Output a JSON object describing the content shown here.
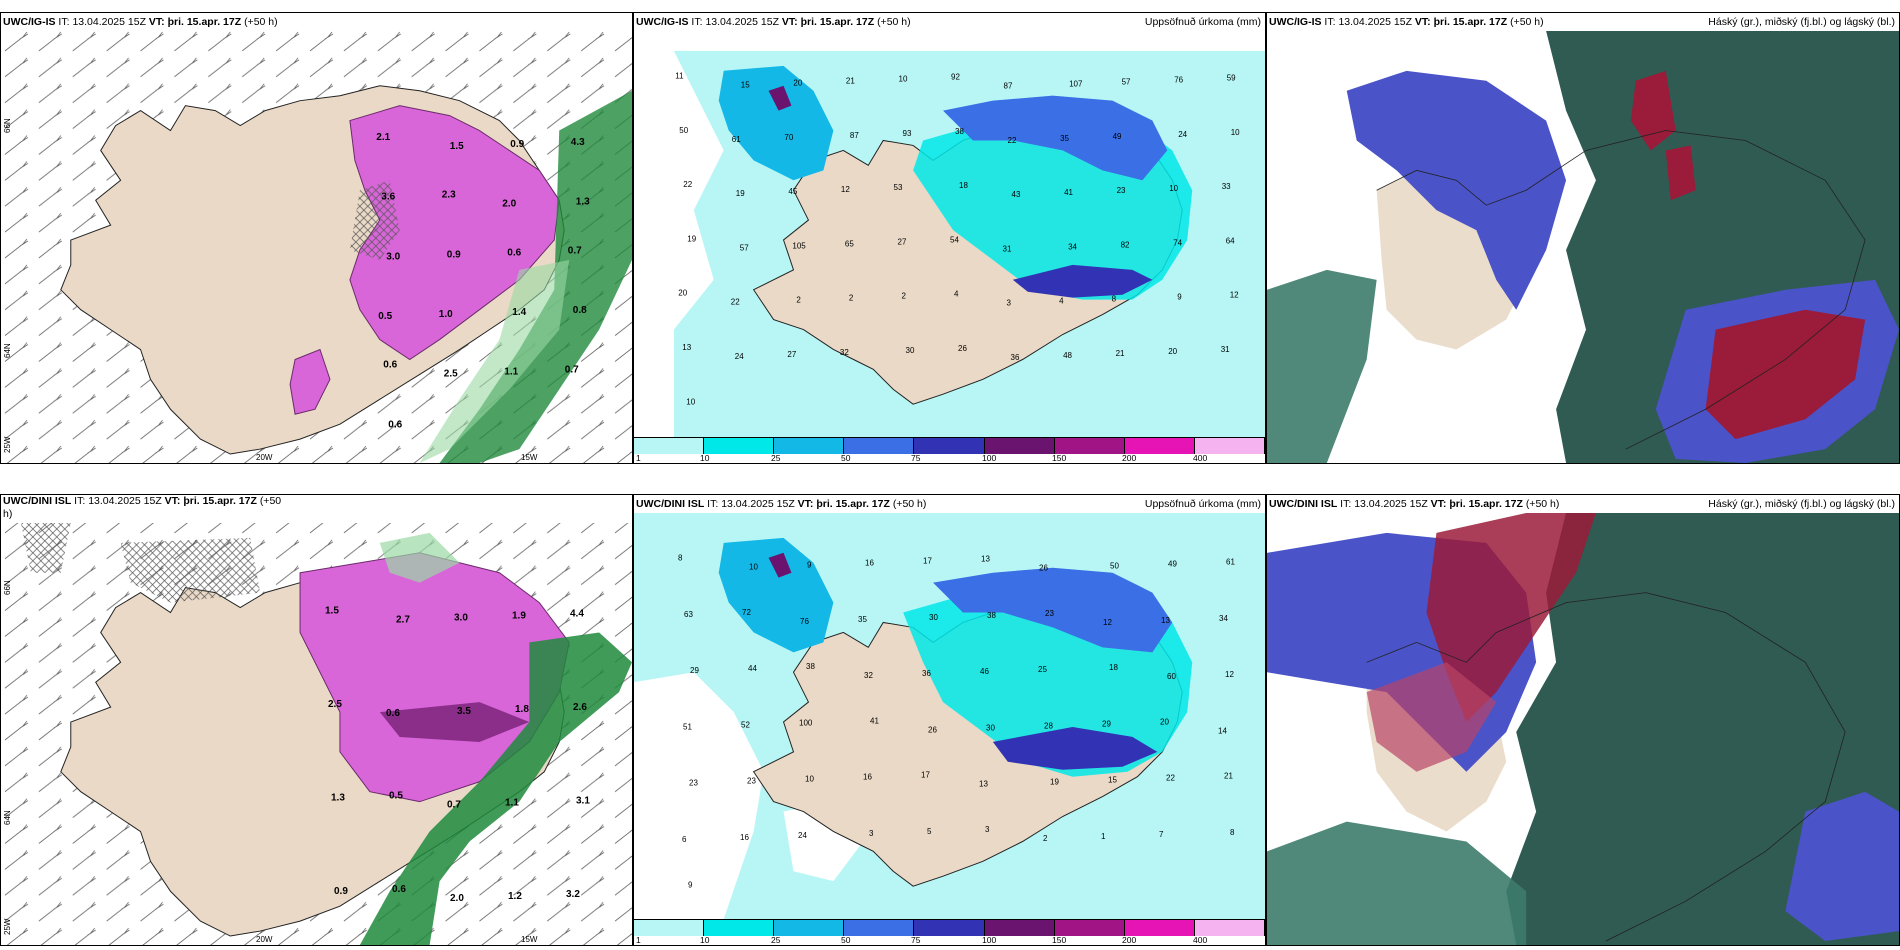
{
  "panels": {
    "p1": {
      "model": "UWC/IG-IS",
      "it_label": "IT:",
      "it": "13.04.2025 15Z",
      "vt_label": "VT:",
      "vt": "þri. 15.apr. 17Z",
      "lead": "(+50 h)"
    },
    "p2": {
      "model": "UWC/IG-IS",
      "it_label": "IT:",
      "it": "13.04.2025 15Z",
      "vt_label": "VT:",
      "vt": "þri. 15.apr. 17Z",
      "lead": "(+50 h)",
      "right_title": "Uppsöfnuð úrkoma (mm)"
    },
    "p3": {
      "model": "UWC/IG-IS",
      "it_label": "IT:",
      "it": "13.04.2025 15Z",
      "vt_label": "VT:",
      "vt": "þri. 15.apr. 17Z",
      "lead": "(+50 h)",
      "right_title": "Háský (gr.), miðský (fj.bl.) og lágský (bl.)"
    },
    "p4": {
      "model": "UWC/DINI ISL",
      "it_label": "IT:",
      "it": "13.04.2025 15Z",
      "vt_label": "VT:",
      "vt": "þri. 15.apr. 17Z",
      "lead": "(+50",
      "lead2": "h)"
    },
    "p5": {
      "model": "UWC/DINI ISL",
      "it_label": "IT:",
      "it": "13.04.2025 15Z",
      "vt_label": "VT:",
      "vt": "þri. 15.apr. 17Z",
      "lead": "(+50 h)",
      "right_title": "Uppsöfnuð úrkoma (mm)"
    },
    "p6": {
      "model": "UWC/DINI ISL",
      "it_label": "IT:",
      "it": "13.04.2025 15Z",
      "vt_label": "VT:",
      "vt": "þri. 15.apr. 17Z",
      "lead": "(+50 h)",
      "right_title": "Háský (gr.), miðský (fj.bl.) og lágský (bl.)"
    }
  },
  "axes": {
    "lat_66": "66N",
    "lat_64": "64N",
    "lon_25": "25W",
    "lon_20": "20W",
    "lon_15": "15W"
  },
  "legend": {
    "labels": [
      "1",
      "10",
      "25",
      "50",
      "75",
      "100",
      "150",
      "200",
      "400"
    ],
    "colors": [
      "#b8f6f6",
      "#00e8e8",
      "#14b8e6",
      "#3a6fe6",
      "#3232b4",
      "#6a1470",
      "#a01486",
      "#e614b4",
      "#f5b4f0"
    ]
  },
  "colors": {
    "land": "#e9d9c6",
    "snow_purple": "#d966d9",
    "rain_green": "#1f8a3c",
    "cyan": "#8ff0f0",
    "cloud_high": "#9b1b3a",
    "cloud_mid": "#4a53c8",
    "cloud_low": "#2f5b52"
  },
  "precip_values_top": [
    "11",
    "15",
    "20",
    "21",
    "10",
    "92",
    "87",
    "107",
    "57",
    "76",
    "59",
    "50",
    "61",
    "70",
    "87",
    "93",
    "38",
    "22",
    "35",
    "49",
    "24",
    "10",
    "22",
    "19",
    "45",
    "12",
    "53",
    "18",
    "43",
    "41",
    "23",
    "10",
    "33",
    "19",
    "57",
    "105",
    "65",
    "27",
    "54",
    "31",
    "34",
    "82",
    "74",
    "64",
    "20",
    "22",
    "2",
    "2",
    "2",
    "4",
    "3",
    "4",
    "8",
    "9",
    "12",
    "13",
    "24",
    "27",
    "32",
    "30",
    "26",
    "36",
    "48",
    "21",
    "20",
    "31",
    "10"
  ],
  "precip_values_bottom": [
    "8",
    "10",
    "9",
    "16",
    "17",
    "13",
    "26",
    "50",
    "49",
    "61",
    "63",
    "72",
    "76",
    "35",
    "30",
    "38",
    "23",
    "12",
    "13",
    "34",
    "29",
    "44",
    "38",
    "32",
    "36",
    "46",
    "25",
    "18",
    "60",
    "12",
    "51",
    "52",
    "100",
    "41",
    "26",
    "30",
    "28",
    "29",
    "20",
    "14",
    "23",
    "23",
    "10",
    "16",
    "17",
    "13",
    "19",
    "15",
    "22",
    "21",
    "6",
    "16",
    "24",
    "3",
    "5",
    "3",
    "2",
    "1",
    "7",
    "8",
    "9"
  ],
  "temp_values_top": [
    "2.1",
    "1.5",
    "0.9",
    "4.3",
    "3.6",
    "2.3",
    "2.0",
    "1.3",
    "3.0",
    "0.9",
    "0.6",
    "0.7",
    "0.5",
    "1.0",
    "1.4",
    "0.8",
    "0.6",
    "2.5",
    "1.1",
    "0.7",
    "0.6"
  ],
  "temp_values_bottom": [
    "1.5",
    "2.7",
    "3.0",
    "1.9",
    "4.4",
    "2.5",
    "0.6",
    "3.5",
    "1.8",
    "2.6",
    "1.3",
    "0.5",
    "0.7",
    "1.1",
    "3.1",
    "0.9",
    "0.6",
    "2.0",
    "1.2",
    "3.2"
  ]
}
